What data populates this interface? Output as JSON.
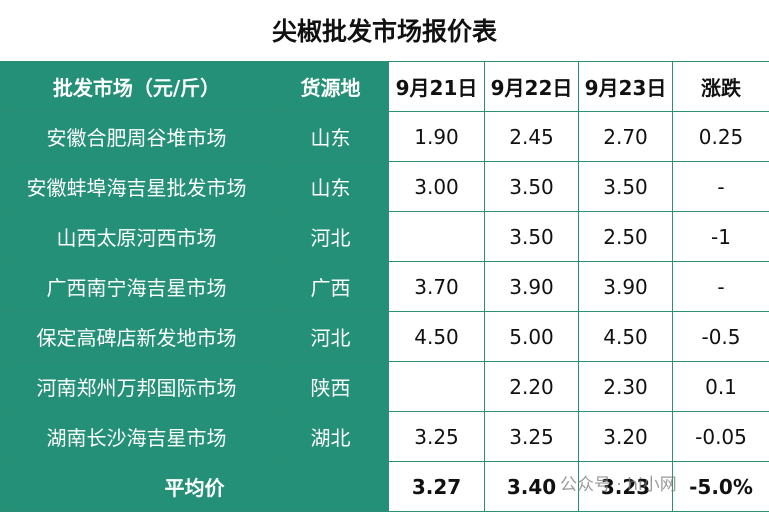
{
  "title": "尖椒批发市场报价表",
  "table": {
    "header": [
      "批发市场（元/斤）",
      "货源地",
      "9月21日",
      "9月22日",
      "9月23日",
      "涨跌"
    ],
    "rows": [
      [
        "安徽合肥周谷堆市场",
        "山东",
        "1.90",
        "2.45",
        "2.70",
        "0.25"
      ],
      [
        "安徽蚌埠海吉星批发市场",
        "山东",
        "3.00",
        "3.50",
        "3.50",
        "-"
      ],
      [
        "山西太原河西市场",
        "河北",
        null,
        "3.50",
        "2.50",
        "-1"
      ],
      [
        "广西南宁海吉星市场",
        "广西",
        "3.70",
        "3.90",
        "3.90",
        "-"
      ],
      [
        "保定高碑店新发地市场",
        "河北",
        "4.50",
        "5.00",
        "4.50",
        "-0.5"
      ],
      [
        "河南郑州万邦国际市场",
        "陕西",
        null,
        "2.20",
        "2.30",
        "0.1"
      ],
      [
        "湖南长沙海吉星市场",
        "湖北",
        "3.25",
        "3.25",
        "3.20",
        "-0.05"
      ]
    ],
    "footer": [
      "平均价",
      "3.27",
      "3.40",
      "3.23",
      "-5.0%"
    ]
  },
  "watermark": "公众号 · hi小网"
}
